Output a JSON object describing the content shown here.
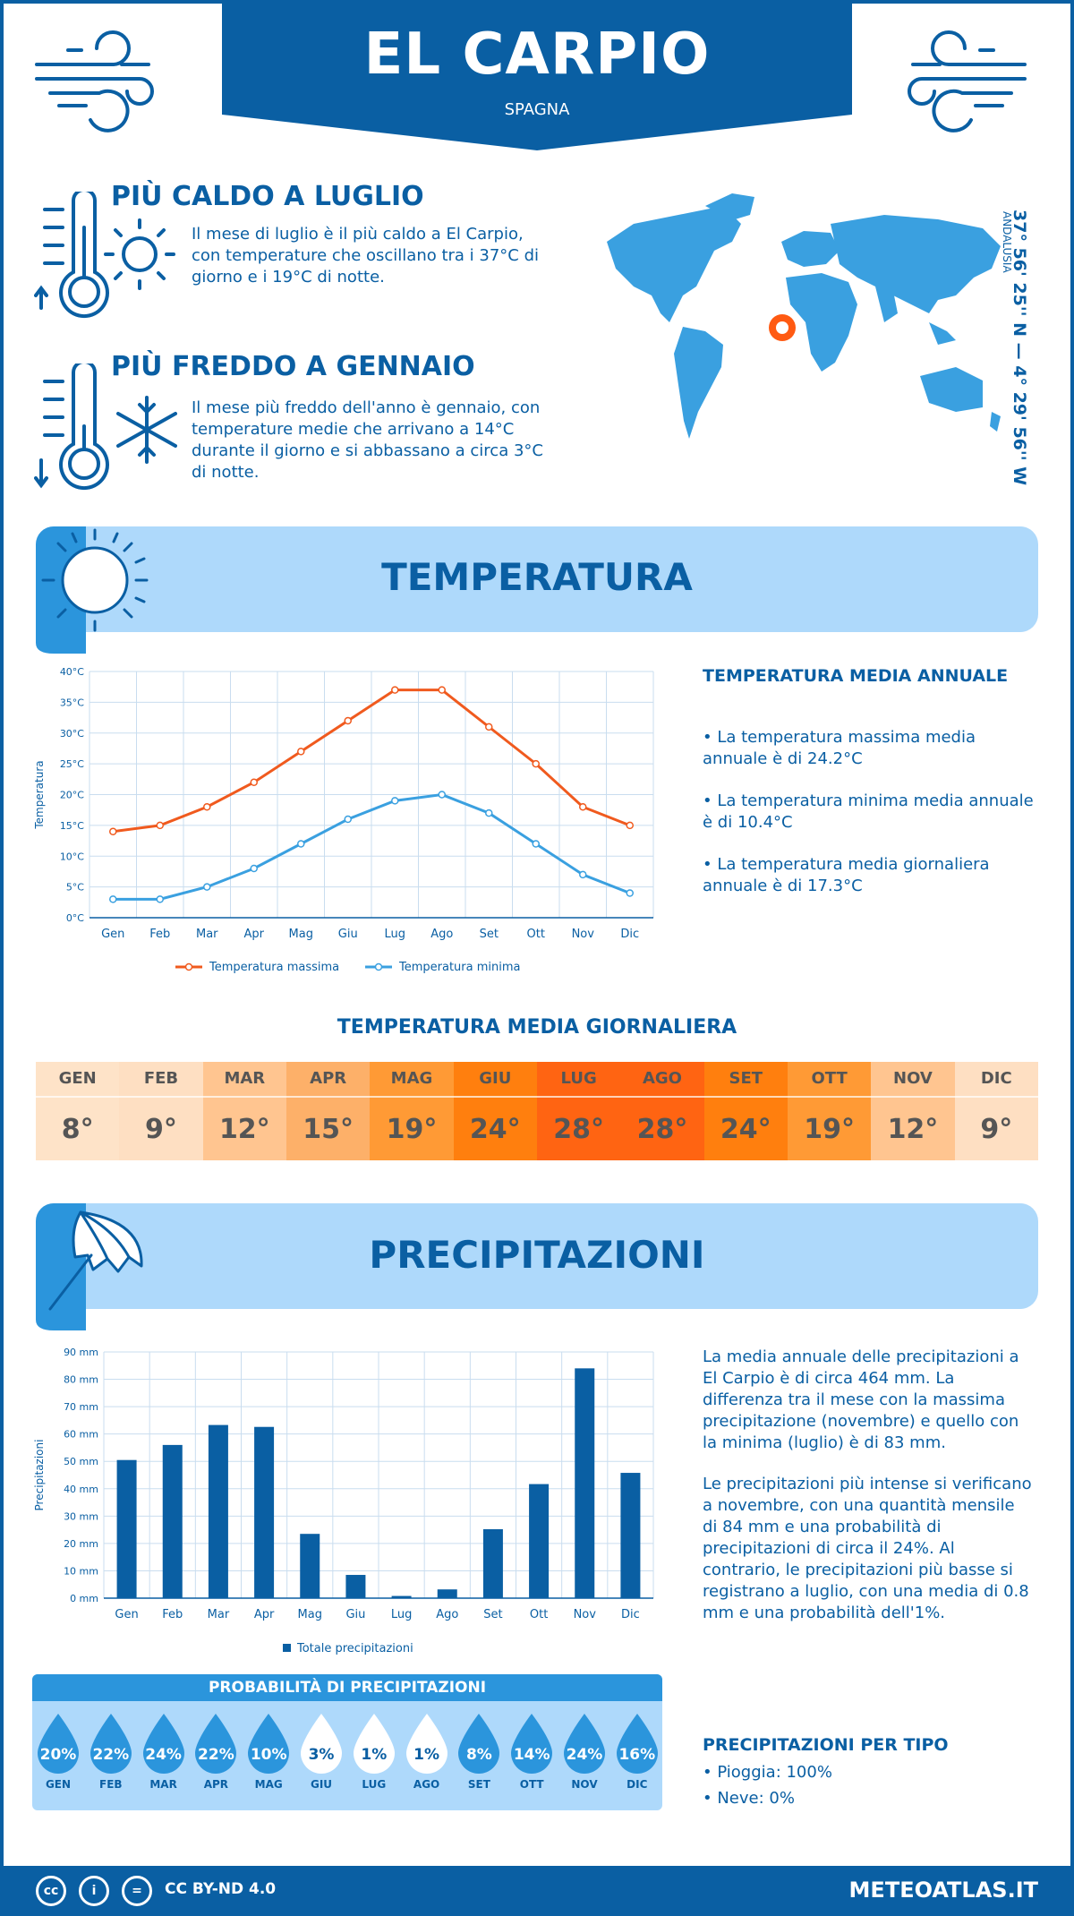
{
  "header": {
    "city": "EL CARPIO",
    "country": "SPAGNA"
  },
  "hot": {
    "title": "PIÙ CALDO A LUGLIO",
    "text": "Il mese di luglio è il più caldo a El Carpio, con temperature che oscillano tra i 37°C di giorno e i 19°C di notte."
  },
  "cold": {
    "title": "PIÙ FREDDO A GENNAIO",
    "text": "Il mese più freddo dell'anno è gennaio, con temperature medie che arrivano a 14°C durante il giorno e si abbassano a circa 3°C di notte."
  },
  "location": {
    "coords": "37° 56' 25'' N — 4° 29' 56'' W",
    "region": "ANDALUSIA"
  },
  "temperature_section": {
    "title": "TEMPERATURA",
    "side_title": "TEMPERATURA MEDIA ANNUALE",
    "bullets": [
      "• La temperatura massima media annuale è di 24.2°C",
      "• La temperatura minima media annuale è di 10.4°C",
      "• La temperatura media giornaliera annuale è di 17.3°C"
    ]
  },
  "daily": {
    "title": "TEMPERATURA MEDIA GIORNALIERA",
    "months": [
      "GEN",
      "FEB",
      "MAR",
      "APR",
      "MAG",
      "GIU",
      "LUG",
      "AGO",
      "SET",
      "OTT",
      "NOV",
      "DIC"
    ],
    "values": [
      "8°",
      "9°",
      "12°",
      "15°",
      "19°",
      "24°",
      "28°",
      "28°",
      "24°",
      "19°",
      "12°",
      "9°"
    ],
    "colors": [
      "#fee3c8",
      "#fedfc2",
      "#ffc590",
      "#fdb069",
      "#ff9a35",
      "#ff7f0e",
      "#ff6412",
      "#ff6412",
      "#ff7f0e",
      "#ff9a35",
      "#ffc590",
      "#fedfc2"
    ]
  },
  "precip_section": {
    "title": "PRECIPITAZIONI",
    "para1": "La media annuale delle precipitazioni a El Carpio è di circa 464 mm. La differenza tra il mese con la massima precipitazione (novembre) e quello con la minima (luglio) è di 83 mm.",
    "para2": "Le precipitazioni più intense si verificano a novembre, con una quantità mensile di 84 mm e una probabilità di precipitazioni di circa il 24%. Al contrario, le precipitazioni più basse si registrano a luglio, con una media di 0.8 mm e una probabilità dell'1%.",
    "type_title": "PRECIPITAZIONI PER TIPO",
    "types": [
      "• Pioggia: 100%",
      "• Neve: 0%"
    ]
  },
  "probability": {
    "title": "PROBABILITÀ DI PRECIPITAZIONI",
    "months": [
      "GEN",
      "FEB",
      "MAR",
      "APR",
      "MAG",
      "GIU",
      "LUG",
      "AGO",
      "SET",
      "OTT",
      "NOV",
      "DIC"
    ],
    "values": [
      "20%",
      "22%",
      "24%",
      "22%",
      "10%",
      "3%",
      "1%",
      "1%",
      "8%",
      "14%",
      "24%",
      "16%"
    ]
  },
  "footer": {
    "license": "CC BY-ND 4.0",
    "site": "METEOATLAS.IT"
  },
  "colors": {
    "brand": "#0a5fa3",
    "light_band": "#aed9fb",
    "max_line": "#f05a1e",
    "min_line": "#3aa0e0",
    "bar": "#0a5fa3"
  },
  "chart_data": [
    {
      "type": "line",
      "categories": [
        "Gen",
        "Feb",
        "Mar",
        "Apr",
        "Mag",
        "Giu",
        "Lug",
        "Ago",
        "Set",
        "Ott",
        "Nov",
        "Dic"
      ],
      "series": [
        {
          "name": "Temperatura massima",
          "values": [
            14,
            15,
            18,
            22,
            27,
            32,
            37,
            37,
            31,
            25,
            18,
            15
          ]
        },
        {
          "name": "Temperatura minima",
          "values": [
            3,
            3,
            5,
            8,
            12,
            16,
            19,
            20,
            17,
            12,
            7,
            4
          ]
        }
      ],
      "ylabel": "Temperatura",
      "yticks": [
        "0°C",
        "5°C",
        "10°C",
        "15°C",
        "20°C",
        "25°C",
        "30°C",
        "35°C",
        "40°C"
      ],
      "ylim": [
        0,
        40
      ],
      "grid": true,
      "legend": "bottom"
    },
    {
      "type": "bar",
      "categories": [
        "Gen",
        "Feb",
        "Mar",
        "Apr",
        "Mag",
        "Giu",
        "Lug",
        "Ago",
        "Set",
        "Ott",
        "Nov",
        "Dic"
      ],
      "series": [
        {
          "name": "Totale precipitazioni",
          "values": [
            50.5,
            56,
            63.3,
            62.6,
            23.5,
            8.5,
            0.8,
            3.2,
            25.2,
            41.7,
            84,
            45.8
          ]
        }
      ],
      "ylabel": "Precipitazioni",
      "yticks": [
        "0 mm",
        "10 mm",
        "20 mm",
        "30 mm",
        "40 mm",
        "50 mm",
        "60 mm",
        "70 mm",
        "80 mm",
        "90 mm"
      ],
      "ylim": [
        0,
        90
      ],
      "grid": true,
      "legend": "bottom"
    }
  ]
}
